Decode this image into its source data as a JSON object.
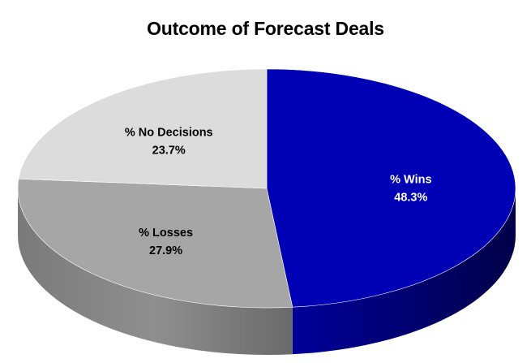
{
  "chart_data": {
    "type": "pie",
    "style": "3d",
    "title": "Outcome of Forecast Deals",
    "slices": [
      {
        "label": "% Wins",
        "value": 48.3,
        "value_label": "48.3%",
        "color": "#0000b4",
        "side_color": "#000070",
        "text_color": "#ffffff"
      },
      {
        "label": "% Losses",
        "value": 27.9,
        "value_label": "27.9%",
        "color": "#a6a6a6",
        "side_color": "#767676",
        "text_color": "#000000"
      },
      {
        "label": "% No Decisions",
        "value": 23.7,
        "value_label": "23.7%",
        "color": "#dcdcdc",
        "side_color": "#a9a9a9",
        "text_color": "#000000"
      }
    ]
  }
}
